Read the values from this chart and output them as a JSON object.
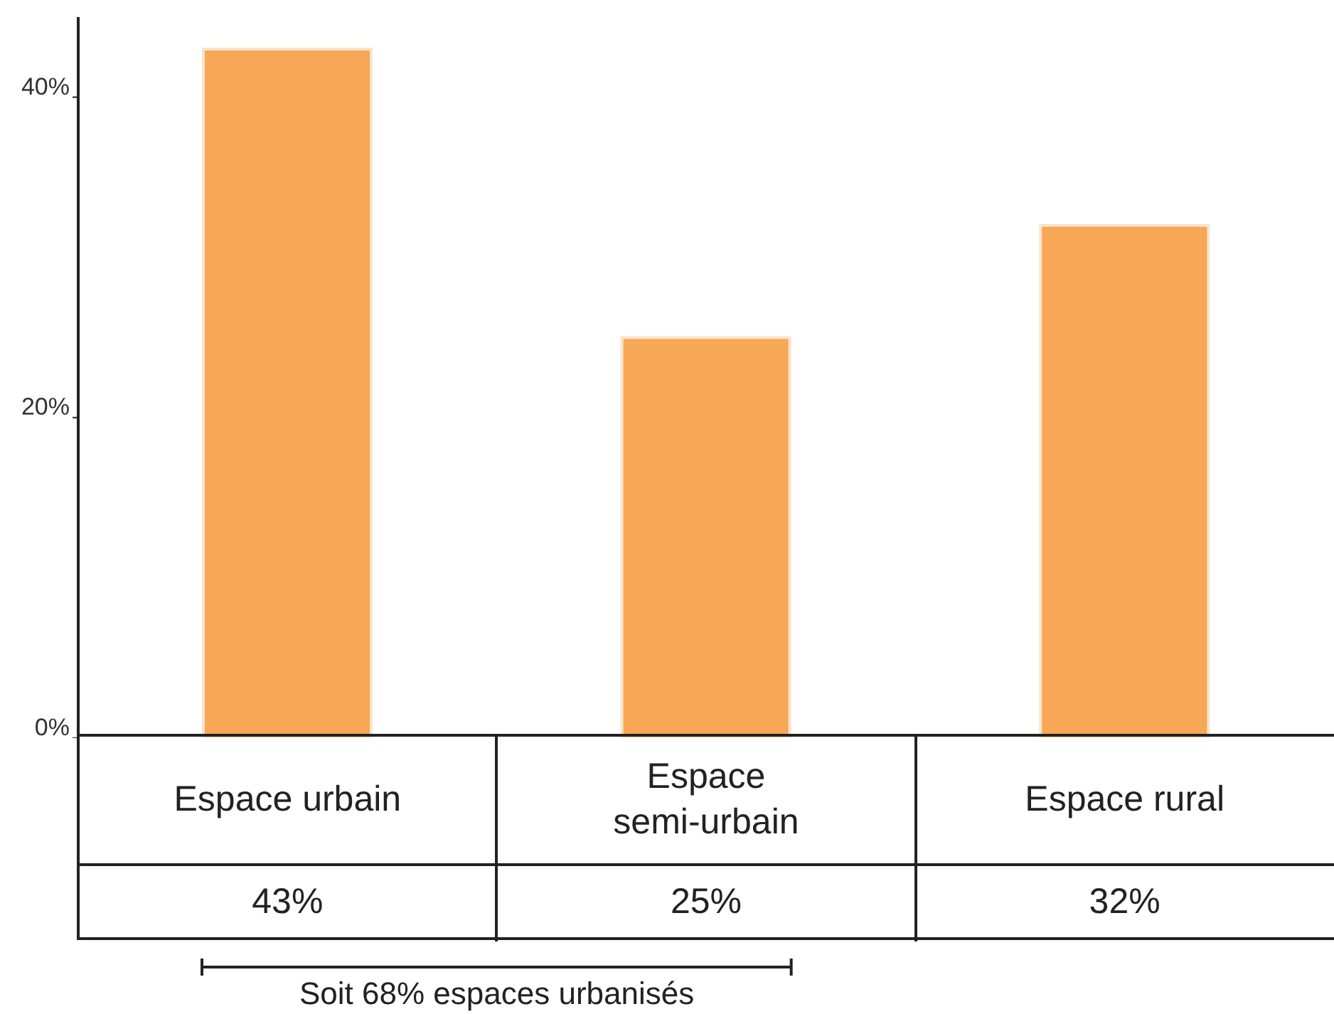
{
  "chart_data": {
    "type": "bar",
    "categories": [
      "Espace urbain",
      "Espace semi-urbain",
      "Espace rural"
    ],
    "values": [
      43,
      25,
      32
    ],
    "value_labels": [
      "43%",
      "25%",
      "32%"
    ],
    "color": "#f7a755",
    "ylim": [
      0,
      45
    ],
    "yticks": [
      {
        "value": 0,
        "label": "0%"
      },
      {
        "value": 20,
        "label": "20%"
      },
      {
        "value": 40,
        "label": "40%"
      }
    ],
    "grid": false,
    "annotations": [
      "Soit 68% espaces urbanisés"
    ]
  }
}
